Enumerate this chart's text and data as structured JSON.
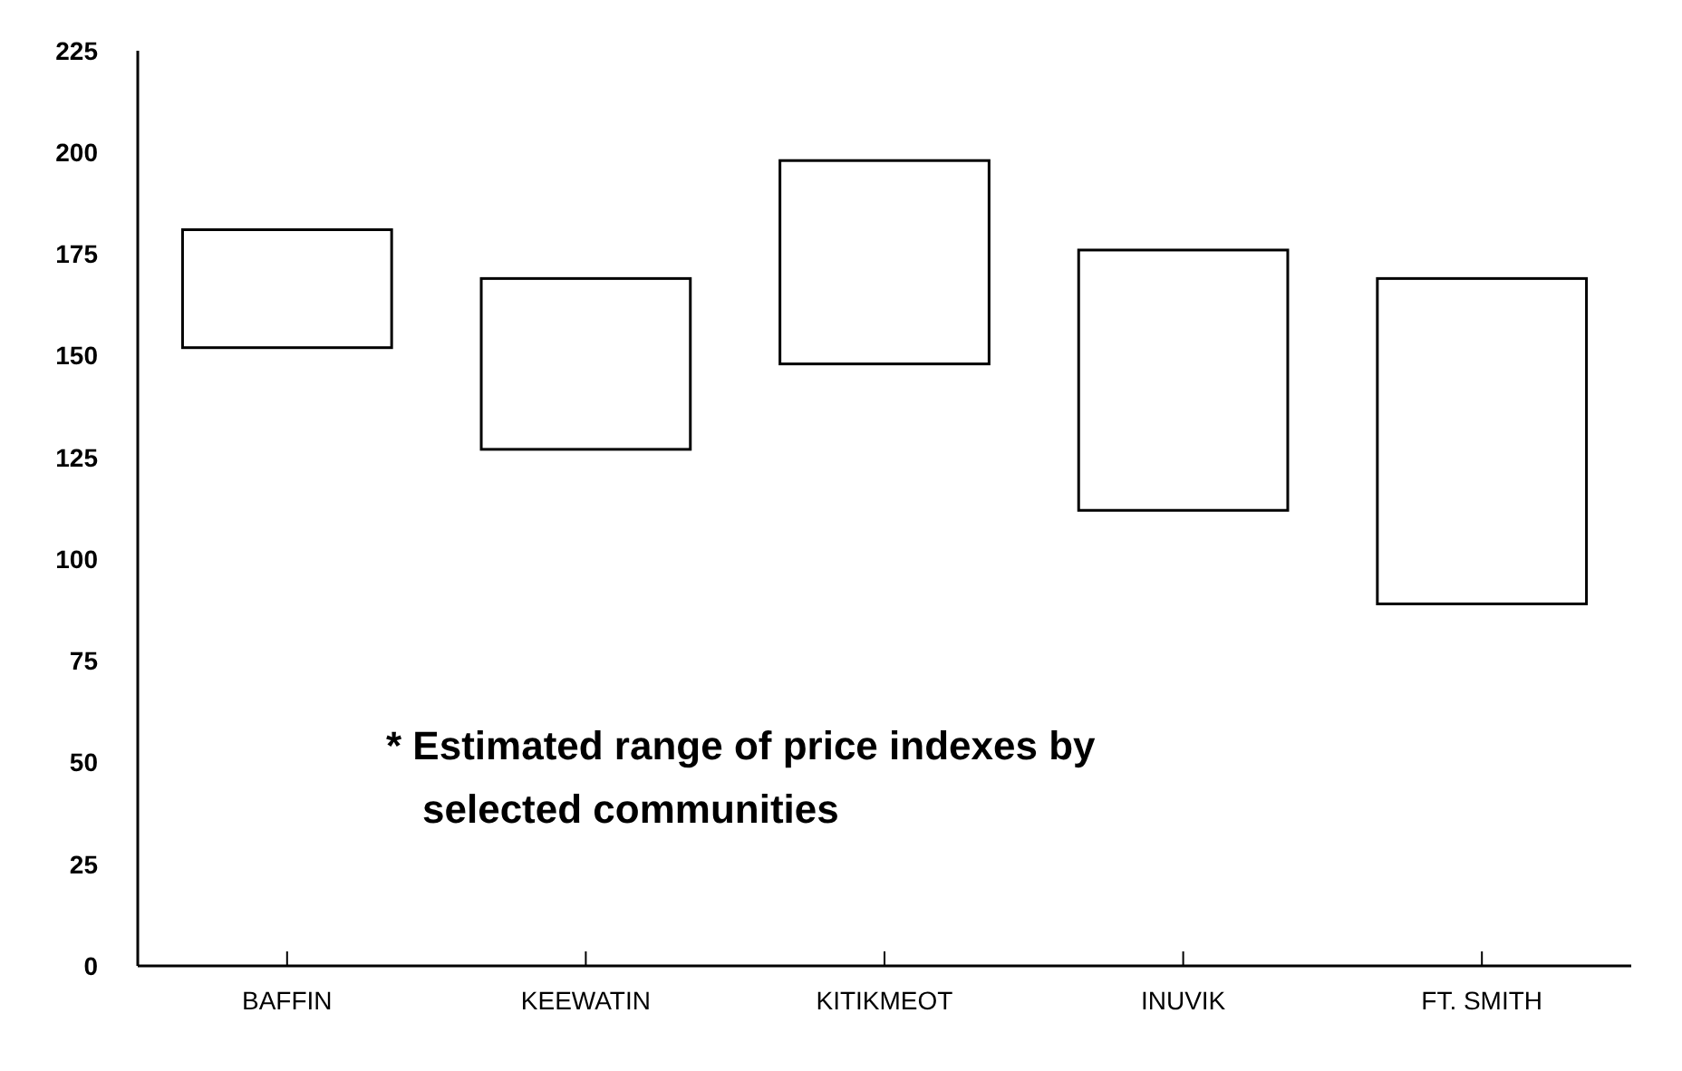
{
  "chart_data": {
    "type": "bar",
    "categories": [
      "BAFFIN",
      "KEEWATIN",
      "KITIKMEOT",
      "INUVIK",
      "FT. SMITH"
    ],
    "base": [
      152,
      127,
      148,
      112,
      89
    ],
    "values": [
      29,
      42,
      50,
      64,
      80
    ],
    "color": "#000000",
    "ylim": [
      0,
      225
    ],
    "yticks": [
      0,
      25,
      50,
      75,
      100,
      125,
      150,
      175,
      200,
      225
    ],
    "grid": false,
    "annotations": [
      "* Estimated range of price indexes by selected communities"
    ]
  }
}
